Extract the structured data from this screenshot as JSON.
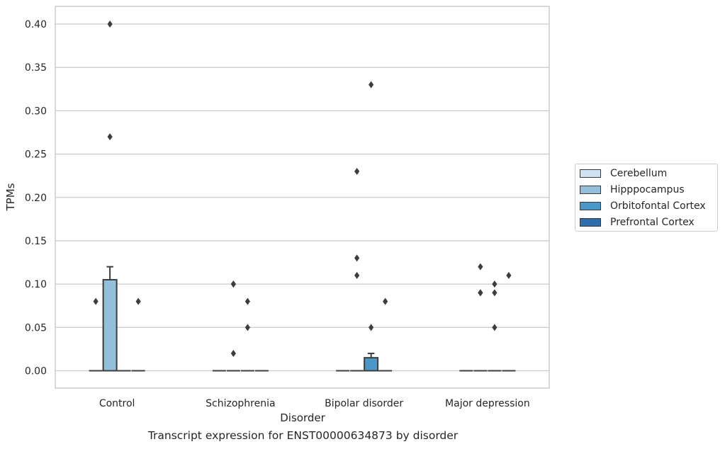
{
  "chart_data": {
    "type": "box",
    "title": "Transcript expression for ENST00000634873 by disorder",
    "xlabel": "Disorder",
    "ylabel": "TPMs",
    "ylim": [
      -0.02,
      0.42
    ],
    "yticks": [
      "0.00",
      "0.05",
      "0.10",
      "0.15",
      "0.20",
      "0.25",
      "0.30",
      "0.35",
      "0.40"
    ],
    "categories": [
      "Control",
      "Schizophrenia",
      "Bipolar disorder",
      "Major depression"
    ],
    "grid": "horizontal",
    "legend_position": "right",
    "series": [
      {
        "name": "Cerebellum",
        "color": "#d0e1f2",
        "boxes": [
          {
            "category": "Control",
            "q1": 0,
            "median": 0,
            "q3": 0,
            "whisker_low": 0,
            "whisker_high": 0,
            "outliers": [
              0.08
            ]
          },
          {
            "category": "Schizophrenia",
            "q1": 0,
            "median": 0,
            "q3": 0,
            "whisker_low": 0,
            "whisker_high": 0,
            "outliers": []
          },
          {
            "category": "Bipolar disorder",
            "q1": 0,
            "median": 0,
            "q3": 0,
            "whisker_low": 0,
            "whisker_high": 0,
            "outliers": []
          },
          {
            "category": "Major depression",
            "q1": 0,
            "median": 0,
            "q3": 0,
            "whisker_low": 0,
            "whisker_high": 0,
            "outliers": []
          }
        ]
      },
      {
        "name": "Hipppocampus",
        "color": "#94bfdb",
        "boxes": [
          {
            "category": "Control",
            "q1": 0,
            "median": 0,
            "q3": 0.105,
            "whisker_low": 0,
            "whisker_high": 0.12,
            "outliers": [
              0.27,
              0.4
            ]
          },
          {
            "category": "Schizophrenia",
            "q1": 0,
            "median": 0,
            "q3": 0,
            "whisker_low": 0,
            "whisker_high": 0,
            "outliers": [
              0.1,
              0.1,
              0.02
            ]
          },
          {
            "category": "Bipolar disorder",
            "q1": 0,
            "median": 0,
            "q3": 0,
            "whisker_low": 0,
            "whisker_high": 0,
            "outliers": [
              0.23,
              0.13,
              0.11
            ]
          },
          {
            "category": "Major depression",
            "q1": 0,
            "median": 0,
            "q3": 0,
            "whisker_low": 0,
            "whisker_high": 0,
            "outliers": [
              0.12,
              0.09,
              0.09
            ]
          }
        ]
      },
      {
        "name": "Orbitofontal Cortex",
        "color": "#4a98c9",
        "boxes": [
          {
            "category": "Control",
            "q1": 0,
            "median": 0,
            "q3": 0,
            "whisker_low": 0,
            "whisker_high": 0,
            "outliers": []
          },
          {
            "category": "Schizophrenia",
            "q1": 0,
            "median": 0,
            "q3": 0,
            "whisker_low": 0,
            "whisker_high": 0,
            "outliers": [
              0.08,
              0.05
            ]
          },
          {
            "category": "Bipolar disorder",
            "q1": 0,
            "median": 0,
            "q3": 0.015,
            "whisker_low": 0,
            "whisker_high": 0.02,
            "outliers": [
              0.33,
              0.05
            ]
          },
          {
            "category": "Major depression",
            "q1": 0,
            "median": 0,
            "q3": 0,
            "whisker_low": 0,
            "whisker_high": 0,
            "outliers": [
              0.1,
              0.09,
              0.05
            ]
          }
        ]
      },
      {
        "name": "Prefrontal Cortex",
        "color": "#2f6ead",
        "boxes": [
          {
            "category": "Control",
            "q1": 0,
            "median": 0,
            "q3": 0,
            "whisker_low": 0,
            "whisker_high": 0,
            "outliers": [
              0.08
            ]
          },
          {
            "category": "Schizophrenia",
            "q1": 0,
            "median": 0,
            "q3": 0,
            "whisker_low": 0,
            "whisker_high": 0,
            "outliers": []
          },
          {
            "category": "Bipolar disorder",
            "q1": 0,
            "median": 0,
            "q3": 0,
            "whisker_low": 0,
            "whisker_high": 0,
            "outliers": [
              0.08
            ]
          },
          {
            "category": "Major depression",
            "q1": 0,
            "median": 0,
            "q3": 0,
            "whisker_low": 0,
            "whisker_high": 0,
            "outliers": [
              0.11
            ]
          }
        ]
      }
    ]
  }
}
